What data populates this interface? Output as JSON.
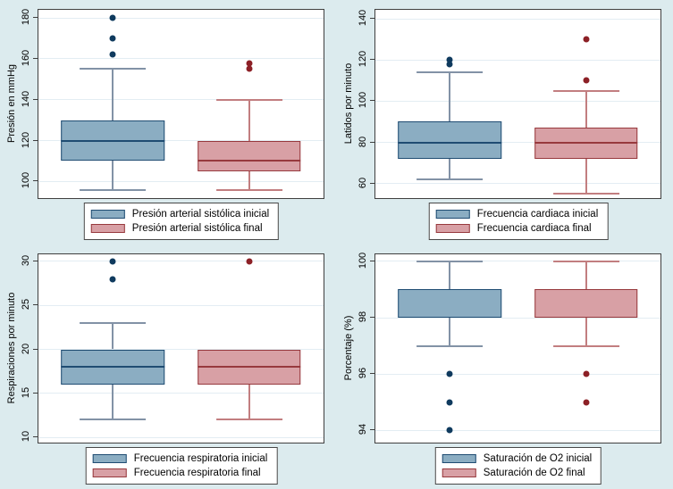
{
  "colors": {
    "background": "#dcebee",
    "plot_bg": "#ffffff",
    "grid": "#e3edf3",
    "axis": "#3f3f3f",
    "series1_fill": "#8badc2",
    "series1_border": "#1f4c72",
    "series1_whisker": "#8292a6",
    "series1_dot": "#0f3a5e",
    "series2_fill": "#d8a0a5",
    "series2_border": "#97393d",
    "series2_whisker": "#c27e80",
    "series2_dot": "#8c2026"
  },
  "chart_data": [
    {
      "type": "box",
      "title": "",
      "ylabel": "Presión en mmHg",
      "yticks": [
        100,
        120,
        140,
        160,
        180
      ],
      "ylim": [
        91,
        184
      ],
      "grid": true,
      "legend_position": "bottom",
      "legend": [
        "Presión arterial sistólica inicial",
        "Presión arterial sistólica final"
      ],
      "series": [
        {
          "name": "Presión arterial sistólica inicial",
          "q1": 110,
          "median": 120,
          "q3": 130,
          "whisker_low": 96,
          "whisker_high": 155,
          "outliers": [
            162,
            170,
            180
          ]
        },
        {
          "name": "Presión arterial sistólica final",
          "q1": 105,
          "median": 110,
          "q3": 120,
          "whisker_low": 96,
          "whisker_high": 140,
          "outliers": [
            155,
            158
          ]
        }
      ]
    },
    {
      "type": "box",
      "title": "",
      "ylabel": "Latidos por minuto",
      "yticks": [
        60,
        80,
        100,
        120,
        140
      ],
      "ylim": [
        52,
        144.5
      ],
      "grid": true,
      "legend_position": "bottom",
      "legend": [
        "Frecuencia cardiaca inicial",
        "Frecuencia cardiaca final"
      ],
      "series": [
        {
          "name": "Frecuencia cardiaca inicial",
          "q1": 72,
          "median": 80,
          "q3": 90,
          "whisker_low": 62,
          "whisker_high": 114,
          "outliers": [
            118,
            120
          ]
        },
        {
          "name": "Frecuencia cardiaca final",
          "q1": 72,
          "median": 80,
          "q3": 87,
          "whisker_low": 55,
          "whisker_high": 105,
          "outliers": [
            110,
            130
          ]
        }
      ]
    },
    {
      "type": "box",
      "title": "",
      "ylabel": "Respiraciones por minuto",
      "yticks": [
        10,
        15,
        20,
        25,
        30
      ],
      "ylim": [
        9.2,
        30.8
      ],
      "grid": true,
      "legend_position": "bottom",
      "legend": [
        "Frecuencia respiratoria inicial",
        "Frecuencia respiratoria final"
      ],
      "series": [
        {
          "name": "Frecuencia respiratoria inicial",
          "q1": 16,
          "median": 18,
          "q3": 20,
          "whisker_low": 12,
          "whisker_high": 23,
          "outliers": [
            28,
            30
          ]
        },
        {
          "name": "Frecuencia respiratoria final",
          "q1": 16,
          "median": 18,
          "q3": 20,
          "whisker_low": 12,
          "whisker_high": 20,
          "outliers": [
            30
          ]
        }
      ]
    },
    {
      "type": "box",
      "title": "",
      "ylabel": "Porcentaje (%)",
      "yticks": [
        94,
        96,
        98,
        100
      ],
      "ylim": [
        93.5,
        100.25
      ],
      "grid": true,
      "legend_position": "bottom",
      "legend": [
        "Saturación de O2 inicial",
        "Saturación de O2 final"
      ],
      "series": [
        {
          "name": "Saturación de O2 inicial",
          "q1": 98,
          "median": null,
          "q3": 99,
          "whisker_low": 97,
          "whisker_high": 100,
          "outliers": [
            96,
            95,
            94
          ]
        },
        {
          "name": "Saturación de O2 final",
          "q1": 98,
          "median": null,
          "q3": 99,
          "whisker_low": 97,
          "whisker_high": 100,
          "outliers": [
            96,
            95
          ]
        }
      ]
    }
  ]
}
